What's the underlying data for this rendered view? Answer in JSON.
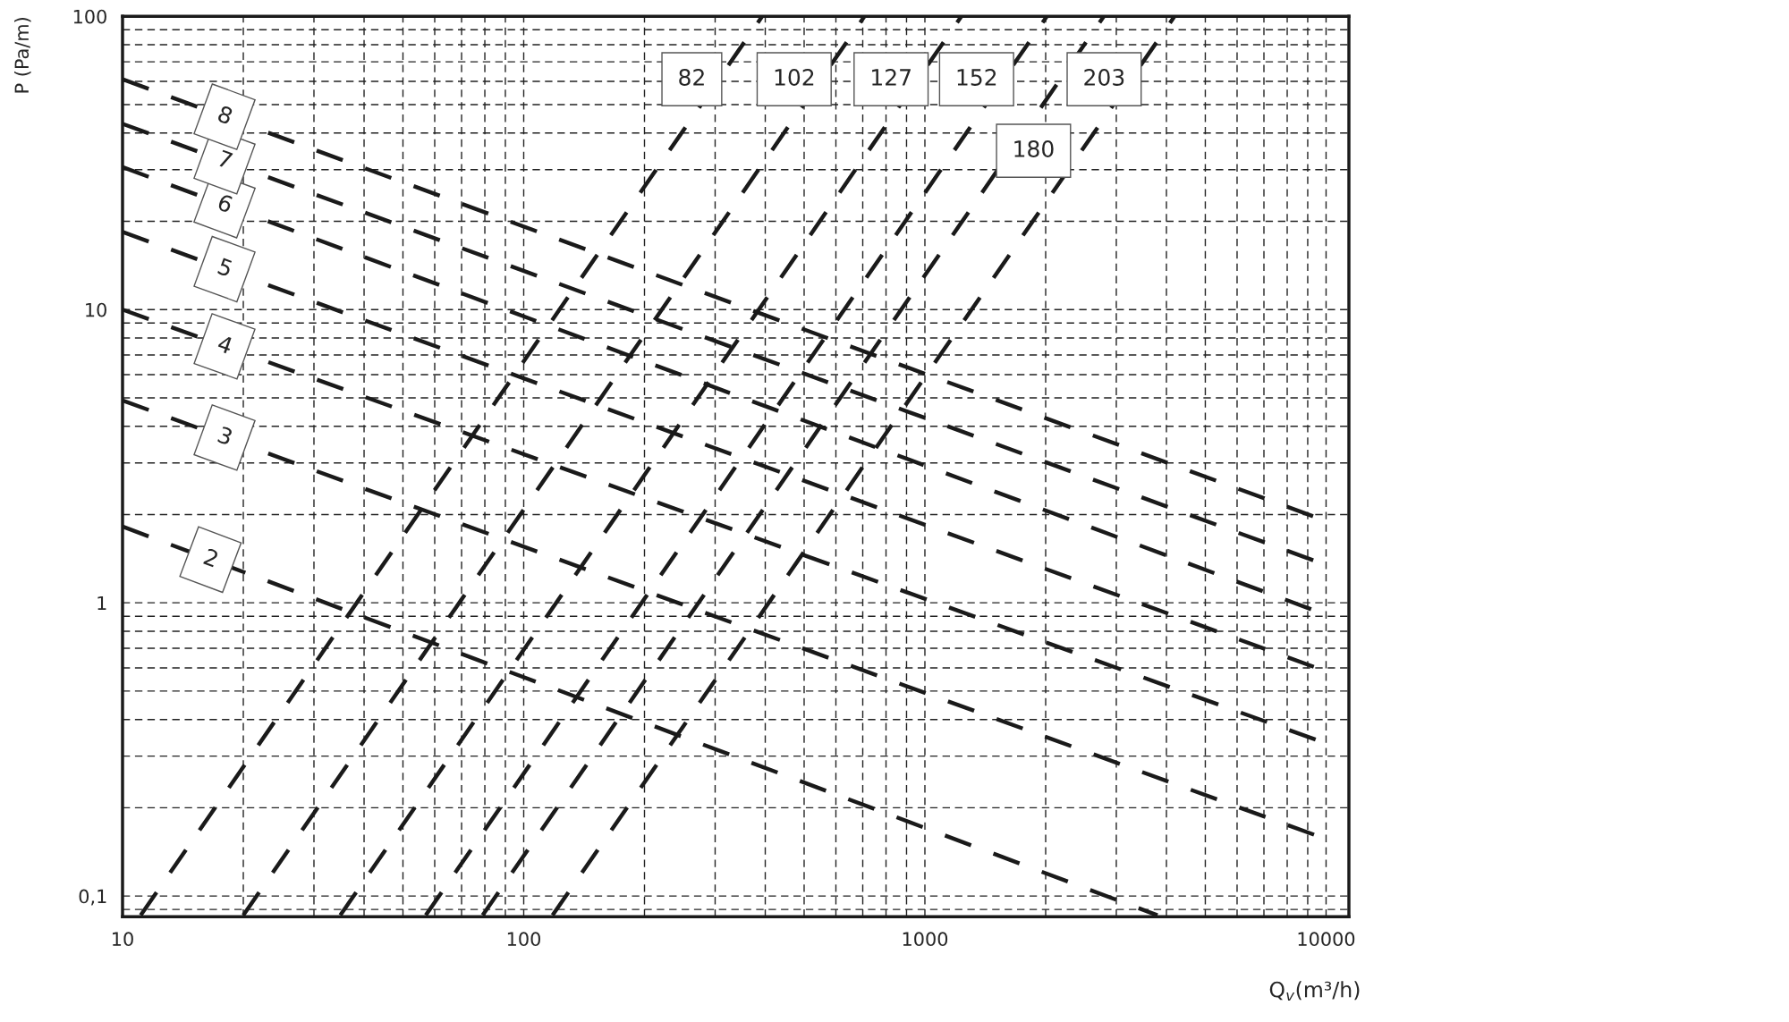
{
  "chart_data": {
    "type": "line",
    "xlabel": "Q$_{v}$(m³/h)",
    "ylabel": "P (Pa/m)",
    "log": "xy",
    "xlim": [
      10,
      11400
    ],
    "ylim": [
      0.085,
      100
    ],
    "xticks": [
      10,
      100,
      1000,
      10000
    ],
    "yticks": [
      {
        "value": 0.1,
        "label": "0,1"
      },
      1,
      10,
      100
    ],
    "grid": true,
    "line_style": "dashed",
    "legend": false,
    "series": [
      {
        "name": "2",
        "color": "#1a1a1a",
        "x": [
          10,
          3800
        ],
        "values": [
          1.82,
          0.086
        ]
      },
      {
        "name": "3",
        "color": "#1a1a1a",
        "x": [
          10,
          9800
        ],
        "values": [
          4.9,
          0.158
        ]
      },
      {
        "name": "4",
        "color": "#1a1a1a",
        "x": [
          10,
          9800
        ],
        "values": [
          10,
          0.335
        ]
      },
      {
        "name": "5",
        "color": "#1a1a1a",
        "x": [
          10,
          9800
        ],
        "values": [
          18.4,
          0.59
        ]
      },
      {
        "name": "6",
        "color": "#1a1a1a",
        "x": [
          10,
          9800
        ],
        "values": [
          30.6,
          0.92
        ]
      },
      {
        "name": "7",
        "color": "#1a1a1a",
        "x": [
          10,
          9800
        ],
        "values": [
          43,
          1.36
        ]
      },
      {
        "name": "8",
        "color": "#1a1a1a",
        "x": [
          10,
          9800
        ],
        "values": [
          61,
          1.92
        ]
      },
      {
        "name": "82",
        "color": "#1a1a1a",
        "x": [
          11.1,
          393
        ],
        "values": [
          0.086,
          100
        ]
      },
      {
        "name": "102",
        "color": "#1a1a1a",
        "x": [
          20,
          707
        ],
        "values": [
          0.086,
          100
        ]
      },
      {
        "name": "127",
        "color": "#1a1a1a",
        "x": [
          34.9,
          1233
        ],
        "values": [
          0.086,
          100
        ]
      },
      {
        "name": "152",
        "color": "#1a1a1a",
        "x": [
          57,
          2014
        ],
        "values": [
          0.086,
          100
        ]
      },
      {
        "name": "180",
        "color": "#1a1a1a",
        "x": [
          79,
          2793
        ],
        "values": [
          0.086,
          100
        ]
      },
      {
        "name": "203",
        "color": "#1a1a1a",
        "x": [
          118,
          4190
        ],
        "values": [
          0.086,
          100
        ]
      }
    ]
  }
}
